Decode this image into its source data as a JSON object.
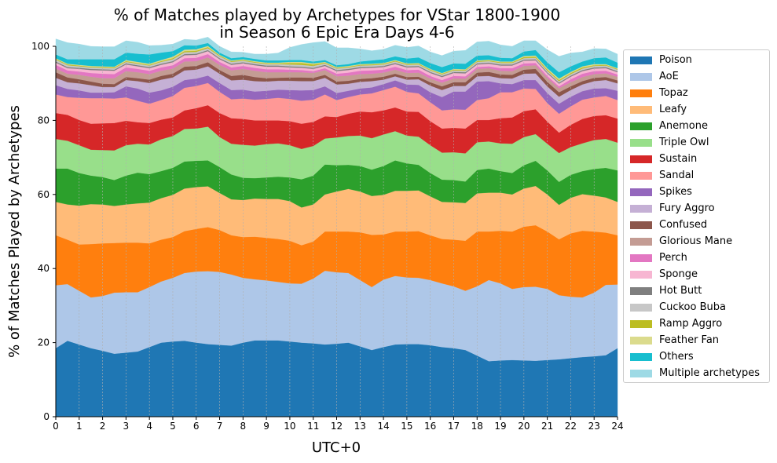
{
  "chart_data": {
    "type": "area",
    "title": "% of Matches played by Archetypes for VStar 1800-1900",
    "subtitle": "in Season 6 Epic Era Days 4-6",
    "xlabel": "UTC+0",
    "ylabel": "% of Matches Played by Archetypes",
    "xlim": [
      0,
      24
    ],
    "ylim": [
      0,
      100
    ],
    "x_ticks": [
      "0",
      "1",
      "2",
      "3",
      "4",
      "5",
      "6",
      "7",
      "8",
      "9",
      "10",
      "11",
      "12",
      "13",
      "14",
      "15",
      "16",
      "17",
      "18",
      "19",
      "20",
      "21",
      "22",
      "23",
      "24"
    ],
    "y_ticks": [
      "0",
      "20",
      "40",
      "60",
      "80",
      "100"
    ],
    "grid": "vertical",
    "legend_position": "right",
    "x": [
      0,
      0.5,
      1,
      1.5,
      2,
      2.5,
      3,
      3.5,
      4,
      4.5,
      5,
      5.5,
      6,
      6.5,
      7,
      7.5,
      8,
      8.5,
      9,
      9.5,
      10,
      10.5,
      11,
      11.5,
      12,
      12.5,
      13,
      13.5,
      14,
      14.5,
      15,
      15.5,
      16,
      16.5,
      17,
      17.5,
      18,
      18.5,
      19,
      19.5,
      20,
      20.5,
      21,
      21.5,
      22,
      22.5,
      23,
      23.5,
      24
    ],
    "series": [
      {
        "name": "Poison",
        "color": "#1f77b4",
        "values": [
          18.5,
          20.5,
          19.5,
          18.5,
          17.8,
          17.0,
          17.3,
          17.6,
          18.8,
          20.0,
          20.3,
          20.5,
          20.0,
          19.6,
          19.4,
          19.2,
          20.0,
          20.6,
          20.6,
          20.6,
          20.3,
          20.0,
          19.8,
          19.5,
          19.7,
          20.0,
          19.0,
          18.0,
          18.8,
          19.5,
          19.6,
          19.6,
          19.3,
          18.8,
          18.5,
          18.0,
          16.5,
          15.0,
          15.2,
          15.3,
          15.2,
          15.1,
          15.3,
          15.5,
          15.8,
          16.1,
          16.3,
          16.6,
          18.5
        ]
      },
      {
        "name": "AoE",
        "color": "#aec7e8",
        "values": [
          17.0,
          15.3,
          14.5,
          13.7,
          14.8,
          16.5,
          16.3,
          16.0,
          16.2,
          16.5,
          17.2,
          18.3,
          19.2,
          19.7,
          19.7,
          19.2,
          17.5,
          16.5,
          16.2,
          15.8,
          15.7,
          15.9,
          17.5,
          19.9,
          19.3,
          18.8,
          17.9,
          17.0,
          18.2,
          18.5,
          18.0,
          17.9,
          17.6,
          17.2,
          16.7,
          16.0,
          18.7,
          21.9,
          20.8,
          19.2,
          19.8,
          20.0,
          19.2,
          17.3,
          16.6,
          16.1,
          17.2,
          19.0,
          17.2
        ]
      },
      {
        "name": "Topaz",
        "color": "#ff7f0e",
        "values": [
          13.5,
          12.0,
          12.5,
          14.4,
          14.2,
          13.4,
          13.4,
          13.4,
          11.8,
          11.3,
          11.0,
          11.3,
          11.5,
          11.9,
          11.3,
          10.6,
          11.0,
          11.5,
          11.5,
          11.6,
          11.5,
          10.4,
          10.0,
          10.6,
          11.0,
          11.2,
          12.9,
          14.1,
          12.2,
          12.0,
          12.4,
          12.6,
          12.1,
          12.0,
          12.6,
          13.5,
          14.8,
          13.1,
          14.2,
          15.5,
          16.3,
          16.6,
          15.5,
          15.1,
          17.1,
          18.0,
          16.5,
          14.1,
          13.3
        ]
      },
      {
        "name": "Leafy",
        "color": "#ffbb78",
        "values": [
          9.0,
          9.5,
          10.5,
          10.8,
          10.5,
          10.0,
          10.3,
          10.6,
          11.0,
          11.2,
          11.4,
          11.5,
          11.3,
          11.0,
          10.0,
          9.7,
          10.0,
          10.3,
          10.5,
          10.8,
          10.7,
          10.2,
          10.0,
          10.0,
          10.8,
          11.5,
          11.0,
          10.5,
          10.7,
          11.0,
          11.0,
          11.0,
          10.5,
          10.0,
          10.1,
          10.2,
          10.3,
          10.5,
          10.3,
          10.0,
          10.3,
          10.6,
          10.0,
          9.3,
          9.6,
          9.9,
          9.7,
          9.5,
          9.0
        ]
      },
      {
        "name": "Anemone",
        "color": "#2ca02c",
        "values": [
          9.0,
          9.7,
          8.8,
          7.7,
          7.4,
          7.0,
          7.8,
          8.3,
          7.7,
          7.3,
          7.3,
          7.3,
          7.1,
          7.0,
          7.0,
          6.7,
          6.0,
          5.5,
          5.8,
          6.0,
          6.4,
          7.6,
          7.8,
          8.1,
          7.1,
          6.5,
          6.9,
          7.1,
          7.8,
          8.2,
          7.4,
          6.9,
          6.3,
          6.0,
          6.0,
          5.8,
          6.3,
          6.5,
          5.8,
          5.8,
          6.3,
          6.8,
          6.5,
          6.2,
          6.2,
          6.2,
          7.2,
          8.0,
          8.5
        ]
      },
      {
        "name": "Triple Owl",
        "color": "#98df8a",
        "values": [
          8.0,
          7.5,
          7.5,
          7.0,
          7.3,
          8.0,
          8.2,
          7.8,
          8.0,
          8.6,
          8.6,
          8.8,
          8.7,
          9.1,
          8.1,
          8.3,
          8.9,
          8.8,
          9.0,
          9.0,
          8.7,
          8.2,
          8.0,
          7.0,
          7.5,
          7.8,
          8.2,
          8.5,
          8.5,
          7.9,
          7.5,
          7.6,
          7.5,
          7.3,
          7.5,
          7.6,
          7.5,
          7.3,
          7.5,
          7.9,
          7.6,
          7.2,
          7.2,
          7.8,
          7.5,
          7.5,
          7.8,
          7.8,
          7.5
        ]
      },
      {
        "name": "Sustain",
        "color": "#d62728",
        "values": [
          7.0,
          7.0,
          6.8,
          7.0,
          7.2,
          7.4,
          6.6,
          5.8,
          5.8,
          5.3,
          5.0,
          5.0,
          5.5,
          5.8,
          6.5,
          6.9,
          7.0,
          6.8,
          6.4,
          6.2,
          6.5,
          6.8,
          6.5,
          6.0,
          5.5,
          6.0,
          6.5,
          7.0,
          6.5,
          6.4,
          6.5,
          6.7,
          6.5,
          6.5,
          6.6,
          6.7,
          6.0,
          5.8,
          6.8,
          7.1,
          7.0,
          6.7,
          6.0,
          5.5,
          6.0,
          6.6,
          6.5,
          6.4,
          6.5
        ]
      },
      {
        "name": "Sandal",
        "color": "#ff9896",
        "values": [
          5.0,
          4.8,
          6.0,
          6.9,
          6.8,
          6.6,
          6.3,
          5.8,
          5.2,
          5.3,
          5.8,
          6.1,
          6.0,
          6.0,
          5.7,
          5.1,
          5.5,
          5.6,
          5.8,
          6.1,
          6.0,
          6.2,
          6.0,
          5.9,
          4.6,
          4.5,
          4.6,
          5.1,
          5.5,
          5.6,
          5.3,
          5.0,
          5.1,
          4.9,
          5.0,
          5.1,
          5.4,
          5.9,
          7.0,
          6.8,
          6.1,
          5.5,
          5.0,
          5.1,
          5.0,
          5.2,
          5.0,
          5.2,
          5.0
        ]
      },
      {
        "name": "Spikes",
        "color": "#9467bd",
        "values": [
          2.5,
          2.2,
          2.0,
          1.5,
          1.5,
          1.7,
          3.0,
          3.3,
          3.0,
          2.6,
          2.5,
          2.1,
          2.0,
          2.0,
          2.4,
          2.5,
          2.4,
          2.2,
          2.2,
          2.2,
          2.4,
          2.8,
          2.6,
          2.2,
          1.9,
          1.7,
          1.6,
          1.6,
          1.6,
          1.7,
          2.0,
          2.3,
          2.7,
          3.6,
          4.8,
          4.9,
          5.0,
          4.6,
          2.4,
          2.2,
          2.3,
          2.4,
          2.7,
          2.7,
          2.6,
          2.3,
          2.4,
          2.1,
          2.5
        ]
      },
      {
        "name": "Fury Aggro",
        "color": "#c5b0d5",
        "values": [
          2.0,
          1.8,
          1.9,
          2.0,
          1.5,
          1.4,
          1.7,
          2.0,
          2.6,
          2.9,
          2.5,
          2.6,
          2.4,
          2.5,
          2.5,
          2.6,
          2.7,
          2.8,
          2.5,
          2.4,
          2.5,
          2.5,
          2.4,
          2.3,
          2.3,
          1.9,
          1.8,
          1.7,
          1.2,
          1.1,
          1.3,
          1.5,
          1.8,
          1.9,
          1.5,
          1.5,
          1.4,
          1.4,
          1.4,
          1.5,
          1.7,
          1.8,
          1.8,
          1.9,
          1.8,
          1.8,
          2.0,
          2.2,
          2.0
        ]
      },
      {
        "name": "Confused",
        "color": "#8c564b",
        "values": [
          1.5,
          1.3,
          1.1,
          1.0,
          0.9,
          0.8,
          0.8,
          0.8,
          0.9,
          1.0,
          1.0,
          1.0,
          1.0,
          1.1,
          1.0,
          1.2,
          1.3,
          1.1,
          0.9,
          0.8,
          0.9,
          1.0,
          0.9,
          0.8,
          0.8,
          0.8,
          0.8,
          0.8,
          0.8,
          0.7,
          0.7,
          0.7,
          0.9,
          1.0,
          1.0,
          1.0,
          1.0,
          1.1,
          1.0,
          1.0,
          1.1,
          1.2,
          1.2,
          1.2,
          1.0,
          0.9,
          0.9,
          0.8,
          0.8
        ]
      },
      {
        "name": "Glorious Mane",
        "color": "#c49c94",
        "values": [
          1.0,
          1.0,
          1.2,
          1.3,
          1.5,
          1.6,
          1.6,
          1.6,
          1.5,
          1.4,
          1.4,
          1.4,
          1.3,
          1.3,
          1.4,
          1.5,
          1.6,
          1.7,
          1.6,
          1.5,
          1.4,
          1.4,
          1.3,
          1.3,
          1.4,
          1.4,
          1.3,
          1.2,
          1.1,
          1.1,
          1.1,
          1.1,
          1.0,
          1.0,
          1.0,
          1.0,
          1.0,
          1.0,
          1.0,
          1.0,
          1.0,
          1.0,
          1.1,
          1.1,
          1.1,
          1.1,
          1.0,
          1.0,
          1.0
        ]
      },
      {
        "name": "Perch",
        "color": "#e377c2",
        "values": [
          1.0,
          0.9,
          0.9,
          1.0,
          1.2,
          1.1,
          1.0,
          0.9,
          0.9,
          0.9,
          0.9,
          0.9,
          0.9,
          0.9,
          0.8,
          0.8,
          0.8,
          0.8,
          0.8,
          0.8,
          0.7,
          0.6,
          0.5,
          0.5,
          0.7,
          0.8,
          0.9,
          0.9,
          0.8,
          0.8,
          0.8,
          0.8,
          0.7,
          0.7,
          0.7,
          0.6,
          0.5,
          0.5,
          0.7,
          0.8,
          0.7,
          0.6,
          0.5,
          0.5,
          0.8,
          0.9,
          0.8,
          0.7,
          0.6
        ]
      },
      {
        "name": "Sponge",
        "color": "#f7b6d2",
        "values": [
          0.6,
          0.6,
          0.7,
          0.8,
          0.9,
          0.9,
          0.8,
          0.7,
          0.7,
          0.7,
          0.8,
          0.8,
          0.8,
          0.8,
          0.7,
          0.7,
          0.7,
          0.7,
          0.7,
          0.7,
          0.6,
          0.6,
          0.6,
          0.6,
          0.7,
          0.7,
          0.7,
          0.7,
          0.7,
          0.7,
          0.7,
          0.7,
          0.8,
          0.8,
          0.8,
          0.8,
          0.7,
          0.7,
          0.7,
          0.7,
          0.7,
          0.7,
          0.7,
          0.7,
          0.7,
          0.7,
          0.7,
          0.7,
          0.6
        ]
      },
      {
        "name": "Hot Butt",
        "color": "#7f7f7f",
        "values": [
          0.3,
          0.3,
          0.3,
          0.3,
          0.3,
          0.3,
          0.3,
          0.3,
          0.3,
          0.3,
          0.3,
          0.3,
          0.3,
          0.3,
          0.3,
          0.3,
          0.3,
          0.3,
          0.3,
          0.3,
          0.3,
          0.3,
          0.3,
          0.3,
          0.3,
          0.3,
          0.3,
          0.3,
          0.3,
          0.3,
          0.3,
          0.3,
          0.3,
          0.3,
          0.3,
          0.3,
          0.3,
          0.3,
          0.3,
          0.3,
          0.3,
          0.3,
          0.3,
          0.3,
          0.3,
          0.3,
          0.3,
          0.3,
          0.3
        ]
      },
      {
        "name": "Cuckoo Buba",
        "color": "#c7c7c7",
        "values": [
          0.5,
          0.5,
          0.4,
          0.4,
          0.4,
          0.4,
          0.4,
          0.4,
          0.4,
          0.5,
          0.5,
          0.5,
          0.5,
          0.5,
          0.5,
          0.5,
          0.4,
          0.4,
          0.4,
          0.4,
          0.5,
          0.5,
          0.5,
          0.4,
          0.4,
          0.4,
          0.4,
          0.4,
          0.4,
          0.4,
          0.4,
          0.4,
          0.4,
          0.4,
          0.4,
          0.4,
          0.4,
          0.4,
          0.4,
          0.4,
          0.4,
          0.4,
          0.4,
          0.4,
          0.4,
          0.4,
          0.4,
          0.4,
          0.4
        ]
      },
      {
        "name": "Ramp Aggro",
        "color": "#bcbd22",
        "values": [
          0.2,
          0.2,
          0.2,
          0.2,
          0.2,
          0.2,
          0.2,
          0.2,
          0.2,
          0.2,
          0.3,
          0.3,
          0.3,
          0.3,
          0.2,
          0.2,
          0.2,
          0.2,
          0.2,
          0.2,
          0.4,
          0.5,
          0.4,
          0.2,
          0.2,
          0.2,
          0.2,
          0.2,
          0.2,
          0.2,
          0.2,
          0.2,
          0.2,
          0.2,
          0.2,
          0.2,
          0.2,
          0.2,
          0.2,
          0.2,
          0.3,
          0.3,
          0.3,
          0.3,
          0.3,
          0.3,
          0.2,
          0.2,
          0.2
        ]
      },
      {
        "name": "Feather Fan",
        "color": "#dbdb8d",
        "values": [
          0.2,
          0.2,
          0.2,
          0.2,
          0.2,
          0.2,
          0.3,
          0.3,
          0.3,
          0.3,
          0.4,
          0.4,
          0.4,
          0.3,
          0.2,
          0.2,
          0.2,
          0.2,
          0.2,
          0.2,
          0.3,
          0.3,
          0.3,
          0.2,
          0.2,
          0.2,
          0.2,
          0.2,
          0.2,
          0.2,
          0.2,
          0.2,
          0.2,
          0.2,
          0.2,
          0.2,
          0.2,
          0.2,
          0.2,
          0.2,
          0.3,
          0.3,
          0.4,
          0.4,
          0.3,
          0.3,
          0.3,
          0.2,
          0.2
        ]
      },
      {
        "name": "Others",
        "color": "#17becf",
        "values": [
          1.0,
          1.2,
          1.5,
          1.8,
          1.9,
          2.0,
          2.0,
          2.2,
          2.5,
          2.0,
          1.5,
          1.2,
          1.0,
          0.8,
          0.6,
          0.6,
          0.6,
          0.6,
          0.6,
          0.6,
          0.5,
          0.5,
          0.5,
          0.5,
          0.5,
          0.5,
          0.7,
          0.9,
          1.0,
          1.0,
          1.3,
          1.5,
          1.6,
          1.6,
          1.5,
          1.5,
          1.3,
          1.2,
          1.0,
          0.9,
          1.2,
          1.5,
          1.6,
          1.7,
          1.5,
          1.3,
          1.6,
          1.8,
          1.5
        ]
      },
      {
        "name": "Multiple archetypes",
        "color": "#9edae5",
        "values": [
          4.2,
          4.5,
          4.1,
          3.5,
          3.4,
          3.4,
          3.2,
          3.1,
          2.4,
          2.0,
          1.9,
          1.6,
          1.5,
          1.6,
          1.7,
          1.7,
          1.3,
          1.3,
          1.7,
          2.0,
          3.4,
          4.2,
          5.1,
          5.0,
          4.7,
          4.4,
          3.4,
          2.6,
          2.7,
          3.0,
          3.0,
          3.1,
          3.0,
          3.1,
          3.3,
          3.6,
          3.7,
          3.8,
          3.5,
          3.2,
          2.9,
          2.5,
          3.4,
          4.3,
          3.6,
          2.6,
          2.6,
          2.3,
          2.3
        ]
      }
    ]
  }
}
